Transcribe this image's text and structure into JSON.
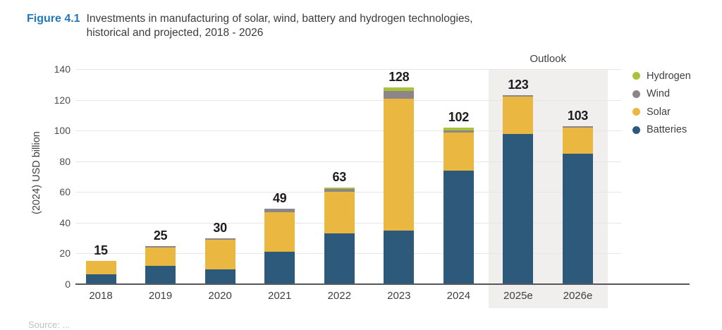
{
  "figure": {
    "label": "Figure 4.1",
    "title_line1": "Investments in manufacturing of solar, wind, battery and hydrogen technologies,",
    "title_line2": "historical and projected, 2018 - 2026"
  },
  "outlook_label": "Outlook",
  "source_note": "Source: ...",
  "colors": {
    "figure_label_blue": "#2278bd",
    "batteries": "#2d5a7b",
    "solar": "#eab840",
    "wind": "#8d8689",
    "hydrogen": "#a9c23b",
    "outlook_band": "#f0efee",
    "axis_line": "#56575a",
    "gridline": "#e7e6e4"
  },
  "chart_data": {
    "type": "bar",
    "stacked": true,
    "title": "Investments in manufacturing of solar, wind, battery and hydrogen technologies, historical and projected, 2018 - 2026",
    "xlabel": "",
    "ylabel": "(2024) USD billion",
    "ylim": [
      0,
      140
    ],
    "yticks": [
      0,
      20,
      40,
      60,
      80,
      100,
      120,
      140
    ],
    "grid": true,
    "legend_position": "right",
    "legend": [
      "Hydrogen",
      "Wind",
      "Solar",
      "Batteries"
    ],
    "categories": [
      "2018",
      "2019",
      "2020",
      "2021",
      "2022",
      "2023",
      "2024",
      "2025e",
      "2026e"
    ],
    "series": [
      {
        "name": "Batteries",
        "color": "#2d5a7b",
        "values": [
          6.5,
          12,
          9.5,
          21,
          33,
          35,
          74,
          98,
          85
        ]
      },
      {
        "name": "Solar",
        "color": "#eab840",
        "values": [
          8.5,
          12,
          19.5,
          26,
          27,
          86,
          25,
          24,
          17
        ]
      },
      {
        "name": "Wind",
        "color": "#8d8689",
        "values": [
          0,
          1,
          1,
          2,
          2,
          5,
          1,
          1,
          1
        ]
      },
      {
        "name": "Hydrogen",
        "color": "#a9c23b",
        "values": [
          0,
          0,
          0,
          0,
          1,
          2,
          2,
          0,
          0
        ]
      }
    ],
    "totals": [
      15,
      25,
      30,
      49,
      63,
      128,
      102,
      123,
      103
    ],
    "outlook_categories": [
      "2025e",
      "2026e"
    ]
  }
}
